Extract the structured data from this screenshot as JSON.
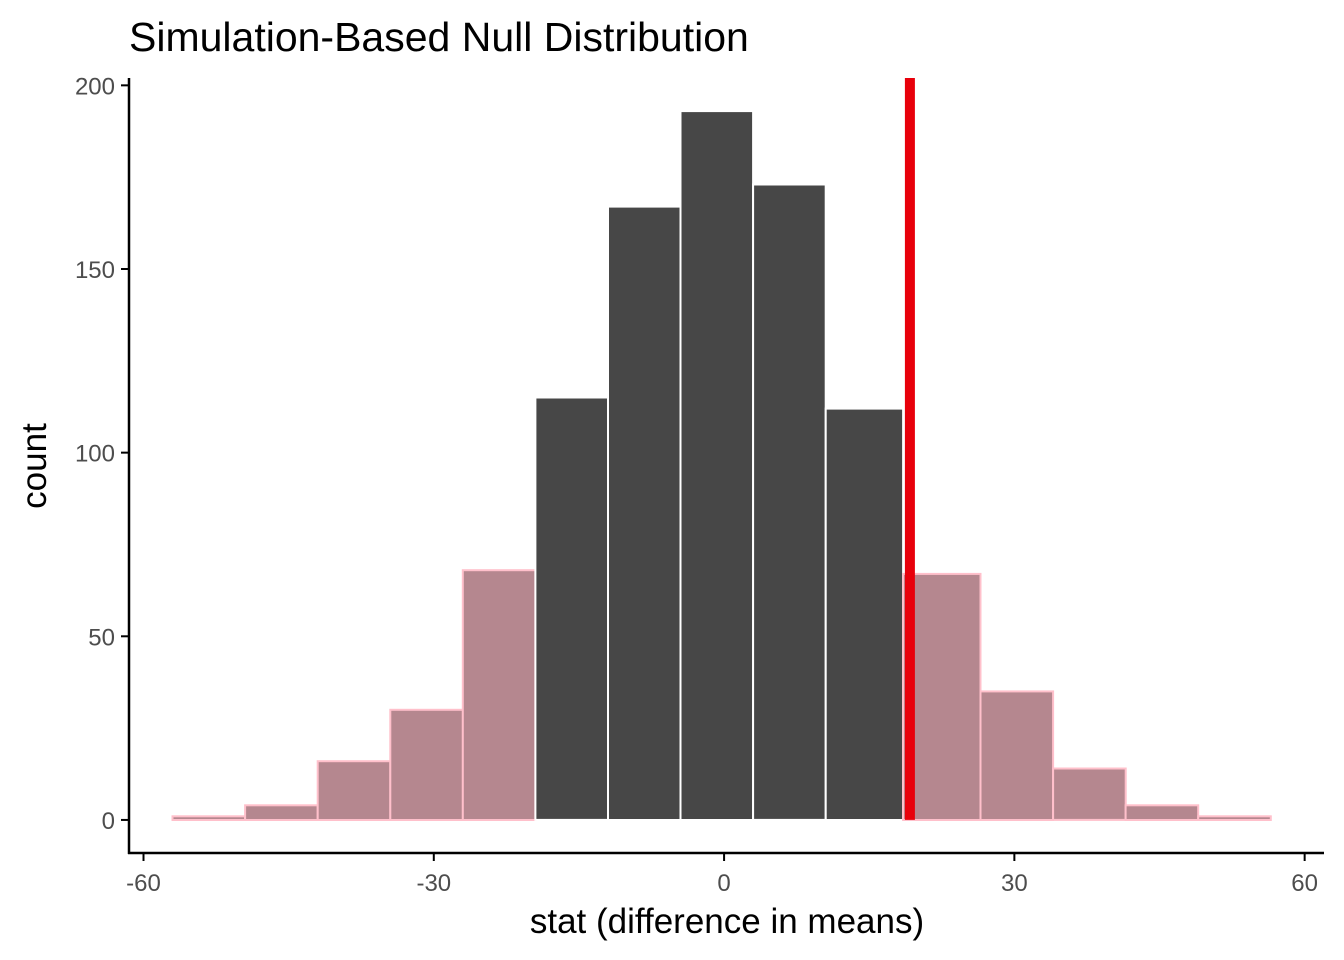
{
  "chart_data": {
    "type": "bar",
    "title": "Simulation-Based Null Distribution",
    "xlabel": "stat (difference in means)",
    "ylabel": "count",
    "xlim": [
      -61.5,
      62
    ],
    "ylim": [
      -9,
      202
    ],
    "x_ticks": [
      -60,
      -30,
      0,
      30,
      60
    ],
    "y_ticks": [
      0,
      50,
      100,
      150,
      200
    ],
    "grid": false,
    "bin_width": 7.5,
    "bins": [
      {
        "x0": -57.0,
        "x1": -49.5,
        "count": 1,
        "shaded": true
      },
      {
        "x0": -49.5,
        "x1": -42.0,
        "count": 4,
        "shaded": true
      },
      {
        "x0": -42.0,
        "x1": -34.5,
        "count": 16,
        "shaded": true
      },
      {
        "x0": -34.5,
        "x1": -27.0,
        "count": 30,
        "shaded": true
      },
      {
        "x0": -27.0,
        "x1": -19.5,
        "count": 68,
        "shaded": true
      },
      {
        "x0": -19.5,
        "x1": -12.0,
        "count": 115,
        "shaded": false
      },
      {
        "x0": -12.0,
        "x1": -4.5,
        "count": 167,
        "shaded": false
      },
      {
        "x0": -4.5,
        "x1": 3.0,
        "count": 193,
        "shaded": false
      },
      {
        "x0": 3.0,
        "x1": 10.5,
        "count": 173,
        "shaded": false
      },
      {
        "x0": 10.5,
        "x1": 18.5,
        "count": 112,
        "shaded": false
      },
      {
        "x0": 18.5,
        "x1": 26.5,
        "count": 67,
        "shaded": true
      },
      {
        "x0": 26.5,
        "x1": 34.0,
        "count": 35,
        "shaded": true
      },
      {
        "x0": 34.0,
        "x1": 41.5,
        "count": 14,
        "shaded": true
      },
      {
        "x0": 41.5,
        "x1": 49.0,
        "count": 4,
        "shaded": true
      },
      {
        "x0": 49.0,
        "x1": 56.5,
        "count": 1,
        "shaded": true
      }
    ],
    "observed_stat": 19.2,
    "colors": {
      "bar_fill": "#474747",
      "bar_stroke": "#ffffff",
      "shaded_fill": "#b5878f",
      "shaded_stroke": "#ffc0cb",
      "observed_line": "#e8000b",
      "axis": "#000000",
      "tick_text": "#4d4d4d"
    }
  }
}
